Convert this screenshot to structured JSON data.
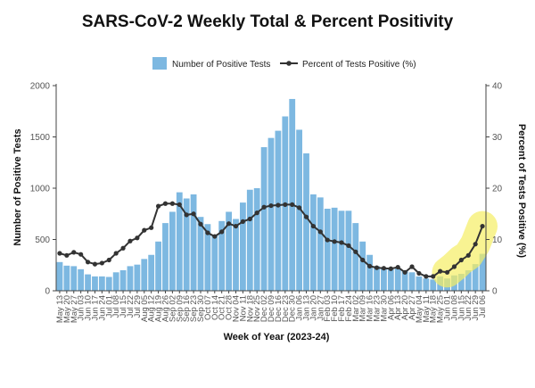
{
  "chart_data": {
    "type": "bar",
    "title": "SARS-CoV-2 Weekly Total & Percent Positivity",
    "xlabel": "Week of Year (2023-24)",
    "ylabel": "Number of Positive Tests",
    "y2label": "Percent of Tests Positive (%)",
    "ylim": [
      0,
      2000
    ],
    "y2lim": [
      0,
      40
    ],
    "yticks": [
      0,
      500,
      1000,
      1500,
      2000
    ],
    "y2ticks": [
      0,
      10,
      20,
      30,
      40
    ],
    "grid": false,
    "legend_position": "top-center",
    "categories": [
      "May 13",
      "May 20",
      "May 27",
      "Jun 03",
      "Jun 10",
      "Jun 17",
      "Jun 24",
      "Jul 01",
      "Jul 08",
      "Jul 15",
      "Jul 22",
      "Jul 29",
      "Aug 05",
      "Aug 12",
      "Aug 19",
      "Aug 26",
      "Sep 02",
      "Sep 09",
      "Sep 16",
      "Sep 23",
      "Sep 30",
      "Oct 07",
      "Oct 14",
      "Oct 21",
      "Oct 28",
      "Nov 04",
      "Nov 11",
      "Nov 18",
      "Nov 25",
      "Dec 02",
      "Dec 09",
      "Dec 16",
      "Dec 23",
      "Dec 30",
      "Jan 06",
      "Jan 13",
      "Jan 20",
      "Jan 27",
      "Feb 03",
      "Feb 10",
      "Feb 17",
      "Feb 24",
      "Mar 02",
      "Mar 09",
      "Mar 16",
      "Mar 23",
      "Mar 30",
      "Apr 06",
      "Apr 13",
      "Apr 20",
      "Apr 27",
      "May 04",
      "May 11",
      "May 18",
      "May 25",
      "Jun 01",
      "Jun 08",
      "Jun 15",
      "Jun 22",
      "Jun 29",
      "Jul 06"
    ],
    "series": [
      {
        "name": "Number of Positive Tests",
        "type": "bar",
        "axis": "left",
        "color": "#7db8e1",
        "values": [
          280,
          245,
          240,
          210,
          160,
          140,
          140,
          135,
          180,
          200,
          240,
          255,
          310,
          350,
          480,
          660,
          770,
          960,
          900,
          940,
          720,
          650,
          540,
          680,
          770,
          700,
          860,
          985,
          1000,
          1400,
          1490,
          1560,
          1700,
          1870,
          1570,
          1340,
          940,
          910,
          800,
          810,
          780,
          780,
          660,
          480,
          350,
          240,
          215,
          210,
          220,
          200,
          180,
          140,
          120,
          110,
          140,
          120,
          150,
          165,
          200,
          260,
          360
        ]
      },
      {
        "name": "Percent of Tests Positive (%)",
        "type": "line",
        "axis": "right",
        "color": "#333333",
        "values": [
          7.3,
          6.9,
          7.5,
          7.1,
          5.6,
          5.2,
          5.4,
          6.0,
          7.3,
          8.3,
          9.7,
          10.3,
          11.8,
          12.3,
          16.5,
          17.0,
          17.0,
          16.8,
          14.8,
          15.0,
          13.0,
          11.3,
          10.6,
          11.5,
          13.1,
          12.6,
          13.5,
          14.0,
          15.2,
          16.3,
          16.6,
          16.7,
          16.8,
          16.8,
          16.2,
          14.4,
          12.6,
          11.5,
          9.9,
          9.6,
          9.4,
          8.8,
          7.6,
          6.0,
          4.8,
          4.5,
          4.4,
          4.3,
          4.6,
          3.6,
          4.7,
          3.4,
          2.8,
          2.8,
          3.8,
          3.6,
          4.7,
          6.0,
          6.9,
          9.1,
          12.6
        ]
      }
    ],
    "highlight": {
      "color": "#f5ee64",
      "from_category": "Jun 01",
      "to_category": "Jul 06"
    }
  }
}
